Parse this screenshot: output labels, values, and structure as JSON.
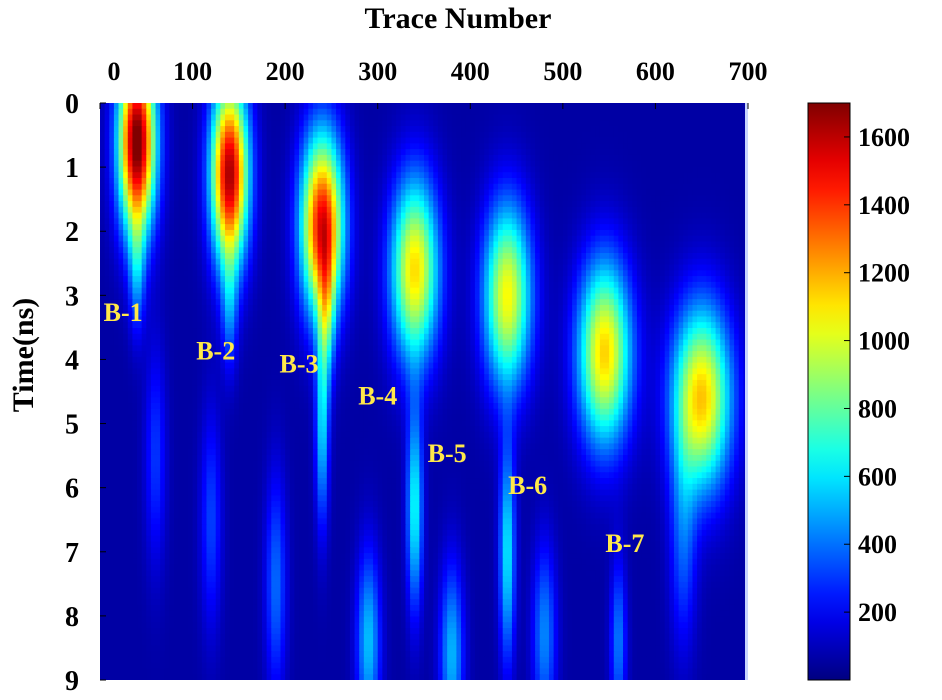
{
  "chart_data": {
    "type": "heatmap",
    "title": "",
    "xlabel": "Trace Number",
    "ylabel": "Time(ns)",
    "x_axis_position": "top",
    "xlim": [
      0,
      700
    ],
    "ylim": [
      0,
      9
    ],
    "y_reversed": true,
    "x_ticks": [
      "0",
      "100",
      "200",
      "300",
      "400",
      "500",
      "600",
      "700"
    ],
    "y_ticks": [
      "0",
      "1",
      "2",
      "3",
      "4",
      "5",
      "6",
      "7",
      "8",
      "9"
    ],
    "colorbar": {
      "position": "right",
      "ticks": [
        "200",
        "400",
        "600",
        "800",
        "1000",
        "1200",
        "1400",
        "1600"
      ],
      "range": [
        0,
        1700
      ],
      "colormap": "jet"
    },
    "background_value": 60,
    "peaks": [
      {
        "label": "B-1",
        "trace": 40,
        "time": 0.6,
        "peak": 1700,
        "sx": 14,
        "sy": 1.0,
        "label_trace": 25,
        "label_time": 3.4
      },
      {
        "label": "B-2",
        "trace": 140,
        "time": 1.1,
        "peak": 1580,
        "sx": 14,
        "sy": 1.0,
        "label_trace": 125,
        "label_time": 4.0
      },
      {
        "label": "B-3",
        "trace": 240,
        "time": 1.9,
        "peak": 1450,
        "sx": 16,
        "sy": 1.0,
        "label_trace": 215,
        "label_time": 4.2
      },
      {
        "label": "B-4",
        "trace": 340,
        "time": 2.6,
        "peak": 1060,
        "sx": 18,
        "sy": 1.0,
        "label_trace": 300,
        "label_time": 4.7
      },
      {
        "label": "B-5",
        "trace": 440,
        "time": 3.0,
        "peak": 1000,
        "sx": 18,
        "sy": 1.0,
        "label_trace": 375,
        "label_time": 5.6
      },
      {
        "label": "B-6",
        "trace": 545,
        "time": 3.9,
        "peak": 1080,
        "sx": 20,
        "sy": 1.0,
        "label_trace": 462,
        "label_time": 6.1
      },
      {
        "label": "B-7",
        "trace": 650,
        "time": 4.6,
        "peak": 1100,
        "sx": 22,
        "sy": 1.0,
        "label_trace": 567,
        "label_time": 7.0
      }
    ],
    "streaks": [
      {
        "trace": 240,
        "time": 5.0,
        "peak": 520,
        "sx": 5,
        "sy": 1.1
      },
      {
        "trace": 245,
        "time": 3.3,
        "peak": 430,
        "sx": 6,
        "sy": 0.8
      },
      {
        "trace": 340,
        "time": 6.3,
        "peak": 600,
        "sx": 6,
        "sy": 1.1
      },
      {
        "trace": 440,
        "time": 7.0,
        "peak": 560,
        "sx": 6,
        "sy": 1.2
      },
      {
        "trace": 290,
        "time": 8.4,
        "peak": 480,
        "sx": 9,
        "sy": 1.0
      },
      {
        "trace": 380,
        "time": 8.6,
        "peak": 460,
        "sx": 9,
        "sy": 1.0
      },
      {
        "trace": 480,
        "time": 8.3,
        "peak": 380,
        "sx": 9,
        "sy": 1.0
      },
      {
        "trace": 560,
        "time": 8.4,
        "peak": 360,
        "sx": 6,
        "sy": 0.9
      },
      {
        "trace": 190,
        "time": 7.5,
        "peak": 330,
        "sx": 8,
        "sy": 1.2
      },
      {
        "trace": 120,
        "time": 6.5,
        "peak": 260,
        "sx": 8,
        "sy": 1.2
      },
      {
        "trace": 60,
        "time": 5.5,
        "peak": 240,
        "sx": 8,
        "sy": 1.2
      },
      {
        "trace": 630,
        "time": 6.8,
        "peak": 300,
        "sx": 10,
        "sy": 1.2
      },
      {
        "trace": 140,
        "time": 3.2,
        "peak": 320,
        "sx": 6,
        "sy": 0.7
      },
      {
        "trace": 40,
        "time": 2.6,
        "peak": 360,
        "sx": 6,
        "sy": 0.7
      }
    ]
  }
}
